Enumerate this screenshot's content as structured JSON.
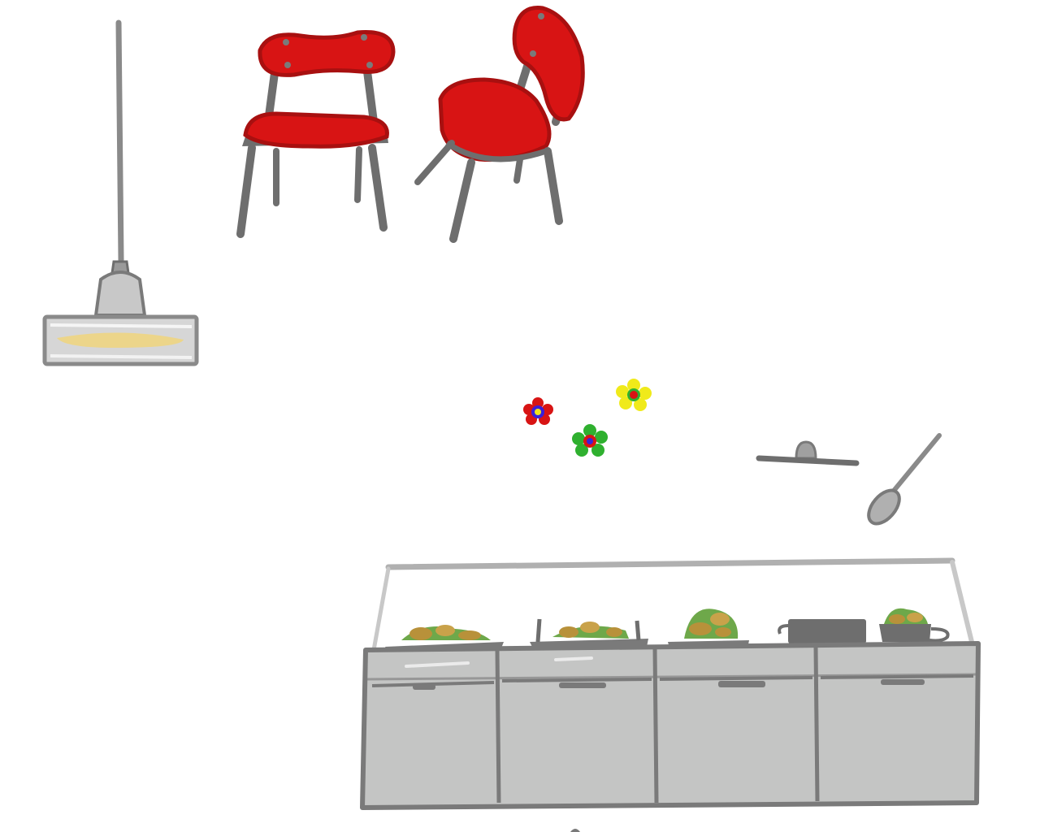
{
  "scene": {
    "background": "#ffffff",
    "colors": {
      "chair_red": "#d81414",
      "chair_red_dark": "#a81010",
      "metal_gray": "#6e6e6e",
      "counter_gray": "#c4c5c4",
      "counter_edge": "#7a7a7a",
      "lamp_glow": "#ecd58a",
      "food_brown": "#b8913a",
      "food_green": "#6ea84a"
    },
    "objects": [
      {
        "name": "pendant-lamp",
        "icon": "pendant-lamp-icon",
        "interactable": true
      },
      {
        "name": "red-chair-front",
        "icon": "chair-icon",
        "interactable": true
      },
      {
        "name": "red-chair-angled",
        "icon": "chair-icon",
        "interactable": true
      },
      {
        "name": "flower-red",
        "icon": "flower-icon",
        "interactable": true
      },
      {
        "name": "flower-green",
        "icon": "flower-icon",
        "interactable": true
      },
      {
        "name": "flower-yellow",
        "icon": "flower-icon",
        "interactable": true
      },
      {
        "name": "pot-lid",
        "icon": "lid-icon",
        "interactable": true
      },
      {
        "name": "spoon",
        "icon": "spoon-icon",
        "interactable": true
      },
      {
        "name": "buffet-counter",
        "icon": "counter-icon",
        "interactable": true
      }
    ],
    "counter": {
      "dishes": [
        "food-tray",
        "food-tray",
        "food-tray",
        "cooking-pot",
        "food-bowl"
      ],
      "doors": 4
    }
  }
}
